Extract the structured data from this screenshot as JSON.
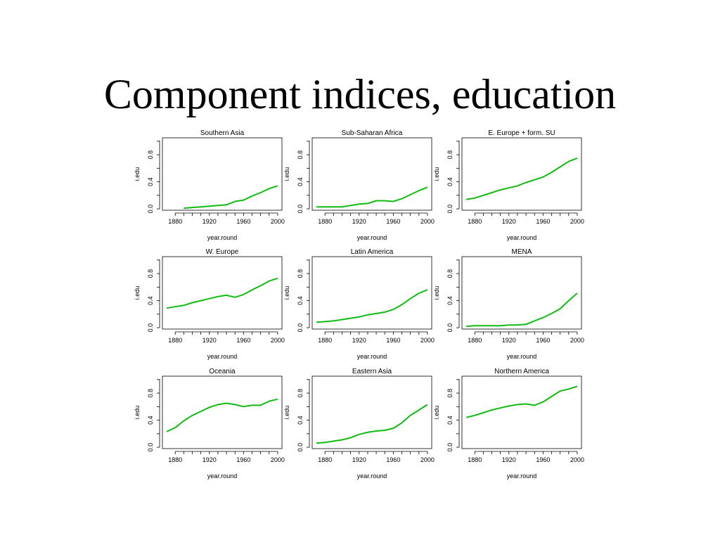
{
  "slide": {
    "title": "Component indices, education"
  },
  "style": {
    "line_color": "#11bb11",
    "axis_color": "#000000"
  },
  "chart_data": [
    {
      "type": "line",
      "title": "Southern Asia",
      "xlabel": "year.round",
      "ylabel": "i.edu",
      "xlim": [
        1865,
        2005
      ],
      "ylim": [
        -0.02,
        1.05
      ],
      "xticks": [
        1880,
        1920,
        1960,
        2000
      ],
      "yticks": [
        0.0,
        0.4,
        0.8
      ],
      "x": [
        1890,
        1900,
        1910,
        1920,
        1930,
        1940,
        1950,
        1960,
        1970,
        1980,
        1990,
        2000
      ],
      "y": [
        0.01,
        0.02,
        0.03,
        0.04,
        0.05,
        0.06,
        0.11,
        0.13,
        0.19,
        0.24,
        0.3,
        0.34
      ]
    },
    {
      "type": "line",
      "title": "Sub-Saharan Africa",
      "xlabel": "year.round",
      "ylabel": "i.edu",
      "xlim": [
        1865,
        2005
      ],
      "ylim": [
        -0.02,
        1.05
      ],
      "xticks": [
        1880,
        1920,
        1960,
        2000
      ],
      "yticks": [
        0.0,
        0.4,
        0.8
      ],
      "x": [
        1870,
        1880,
        1890,
        1900,
        1910,
        1920,
        1930,
        1940,
        1950,
        1960,
        1970,
        1980,
        1990,
        2000
      ],
      "y": [
        0.03,
        0.03,
        0.03,
        0.03,
        0.05,
        0.07,
        0.08,
        0.12,
        0.12,
        0.11,
        0.15,
        0.21,
        0.27,
        0.32
      ]
    },
    {
      "type": "line",
      "title": "E. Europe + form. SU",
      "xlabel": "year.round",
      "ylabel": "i.edu",
      "xlim": [
        1865,
        2005
      ],
      "ylim": [
        -0.02,
        1.05
      ],
      "xticks": [
        1880,
        1920,
        1960,
        2000
      ],
      "yticks": [
        0.0,
        0.4,
        0.8
      ],
      "x": [
        1870,
        1880,
        1890,
        1900,
        1910,
        1920,
        1930,
        1940,
        1950,
        1960,
        1970,
        1980,
        1990,
        2000
      ],
      "y": [
        0.14,
        0.16,
        0.2,
        0.24,
        0.28,
        0.31,
        0.34,
        0.39,
        0.43,
        0.47,
        0.54,
        0.62,
        0.7,
        0.75
      ]
    },
    {
      "type": "line",
      "title": "W. Europe",
      "xlabel": "year.round",
      "ylabel": "i.edu",
      "xlim": [
        1865,
        2005
      ],
      "ylim": [
        -0.02,
        1.05
      ],
      "xticks": [
        1880,
        1920,
        1960,
        2000
      ],
      "yticks": [
        0.0,
        0.4,
        0.8
      ],
      "x": [
        1870,
        1880,
        1890,
        1900,
        1910,
        1920,
        1930,
        1940,
        1950,
        1960,
        1970,
        1980,
        1990,
        2000
      ],
      "y": [
        0.29,
        0.31,
        0.33,
        0.37,
        0.4,
        0.43,
        0.46,
        0.48,
        0.45,
        0.49,
        0.56,
        0.62,
        0.69,
        0.73
      ]
    },
    {
      "type": "line",
      "title": "Latin America",
      "xlabel": "year.round",
      "ylabel": "i.edu",
      "xlim": [
        1865,
        2005
      ],
      "ylim": [
        -0.02,
        1.05
      ],
      "xticks": [
        1880,
        1920,
        1960,
        2000
      ],
      "yticks": [
        0.0,
        0.4,
        0.8
      ],
      "x": [
        1870,
        1880,
        1890,
        1900,
        1910,
        1920,
        1930,
        1940,
        1950,
        1960,
        1970,
        1980,
        1990,
        2000
      ],
      "y": [
        0.08,
        0.09,
        0.1,
        0.12,
        0.14,
        0.16,
        0.19,
        0.21,
        0.23,
        0.27,
        0.34,
        0.43,
        0.51,
        0.56
      ]
    },
    {
      "type": "line",
      "title": "MENA",
      "xlabel": "year.round",
      "ylabel": "i.edu",
      "xlim": [
        1865,
        2005
      ],
      "ylim": [
        -0.02,
        1.05
      ],
      "xticks": [
        1880,
        1920,
        1960,
        2000
      ],
      "yticks": [
        0.0,
        0.4,
        0.8
      ],
      "x": [
        1870,
        1880,
        1890,
        1900,
        1910,
        1920,
        1930,
        1940,
        1950,
        1960,
        1970,
        1980,
        1990,
        2000
      ],
      "y": [
        0.02,
        0.03,
        0.03,
        0.03,
        0.03,
        0.04,
        0.04,
        0.05,
        0.1,
        0.15,
        0.21,
        0.28,
        0.4,
        0.51
      ]
    },
    {
      "type": "line",
      "title": "Oceania",
      "xlabel": "year.round",
      "ylabel": "i.edu",
      "xlim": [
        1865,
        2005
      ],
      "ylim": [
        -0.02,
        1.05
      ],
      "xticks": [
        1880,
        1920,
        1960,
        2000
      ],
      "yticks": [
        0.0,
        0.4,
        0.8
      ],
      "x": [
        1870,
        1880,
        1890,
        1900,
        1910,
        1920,
        1930,
        1940,
        1950,
        1960,
        1970,
        1980,
        1990,
        2000
      ],
      "y": [
        0.23,
        0.29,
        0.39,
        0.47,
        0.53,
        0.59,
        0.63,
        0.65,
        0.63,
        0.6,
        0.62,
        0.62,
        0.68,
        0.71
      ]
    },
    {
      "type": "line",
      "title": "Eastern Asia",
      "xlabel": "year.round",
      "ylabel": "i.edu",
      "xlim": [
        1865,
        2005
      ],
      "ylim": [
        -0.02,
        1.05
      ],
      "xticks": [
        1880,
        1920,
        1960,
        2000
      ],
      "yticks": [
        0.0,
        0.4,
        0.8
      ],
      "x": [
        1870,
        1880,
        1890,
        1900,
        1910,
        1920,
        1930,
        1940,
        1950,
        1960,
        1970,
        1980,
        1990,
        2000
      ],
      "y": [
        0.06,
        0.07,
        0.09,
        0.11,
        0.14,
        0.19,
        0.22,
        0.24,
        0.25,
        0.28,
        0.36,
        0.47,
        0.55,
        0.63
      ]
    },
    {
      "type": "line",
      "title": "Northern America",
      "xlabel": "year.round",
      "ylabel": "i.edu",
      "xlim": [
        1865,
        2005
      ],
      "ylim": [
        -0.02,
        1.05
      ],
      "xticks": [
        1880,
        1920,
        1960,
        2000
      ],
      "yticks": [
        0.0,
        0.4,
        0.8
      ],
      "x": [
        1870,
        1880,
        1890,
        1900,
        1910,
        1920,
        1930,
        1940,
        1950,
        1960,
        1970,
        1980,
        1990,
        2000
      ],
      "y": [
        0.44,
        0.47,
        0.51,
        0.55,
        0.58,
        0.61,
        0.63,
        0.64,
        0.62,
        0.67,
        0.75,
        0.83,
        0.86,
        0.9
      ]
    }
  ]
}
